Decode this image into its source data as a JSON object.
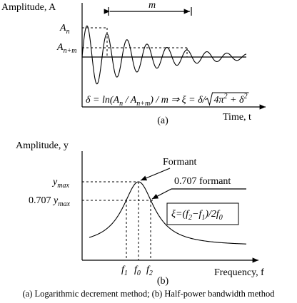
{
  "panel_a": {
    "y_axis_label": "Amplitude, A",
    "x_axis_label": "Time, t",
    "interval_label": "m",
    "peak_label": {
      "symbol": "A",
      "subscript": "n"
    },
    "later_peak_label": {
      "symbol": "A",
      "subscript": "n+m"
    },
    "formula": [
      "δ = ln(A",
      "n",
      " / A",
      "n+m",
      ") / m ⇒ ξ = δ/",
      "4π",
      "2",
      " + δ",
      "2"
    ],
    "panel_label": "(a)"
  },
  "panel_b": {
    "y_axis_label": "Amplitude, y",
    "x_axis_label": "Frequency, f",
    "peak_label": {
      "symbol": "y",
      "subscript": "max"
    },
    "half_power_label": {
      "prefix": "0.707 ",
      "symbol": "y",
      "subscript": "max"
    },
    "formant_label": "Formant",
    "half_power_annotation": "0.707 formant",
    "box_formula": [
      "ξ=(f",
      "2",
      "−f",
      "1",
      ")/2f",
      "0"
    ],
    "frequency_labels": [
      {
        "symbol": "f",
        "subscript": "1"
      },
      {
        "symbol": "f",
        "subscript": "0"
      },
      {
        "symbol": "f",
        "subscript": "2"
      }
    ],
    "panel_label": "(b)"
  },
  "caption": "(a) Logarithmic decrement method; (b) Half-power bandwidth method"
}
